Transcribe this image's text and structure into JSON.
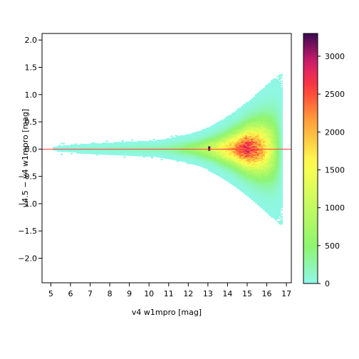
{
  "chart_data": {
    "type": "heatmap",
    "title": "",
    "xlabel": "v4 w1mpro [mag]",
    "ylabel": "v4.5 − v4 w1mpro [mag]",
    "xlim": [
      4.55,
      17.25
    ],
    "ylim": [
      -2.45,
      2.12
    ],
    "x_ticks": [
      5,
      6,
      7,
      8,
      9,
      10,
      11,
      12,
      13,
      14,
      15,
      16,
      17
    ],
    "y_ticks": [
      -2.0,
      -1.5,
      -1.0,
      -0.5,
      0.0,
      0.5,
      1.0,
      1.5,
      2.0
    ],
    "y_tick_labels": [
      "−2.0",
      "−1.5",
      "−1.0",
      "−0.5",
      "0.0",
      "0.5",
      "1.0",
      "1.5",
      "2.0"
    ],
    "reference_line": {
      "y": 0.0,
      "color": "#ff3b3b"
    },
    "colorbar": {
      "min": 0,
      "max": 3300,
      "ticks": [
        0,
        500,
        1000,
        1500,
        2000,
        2500,
        3000
      ],
      "colors": [
        "#8ff7e8",
        "#8ef56f",
        "#ffff50",
        "#ff9a3a",
        "#ff3a3a",
        "#d81e6e",
        "#3a0a52"
      ]
    },
    "density_model": {
      "description_units": "x in mag, y in mag, counts per bin",
      "bin_size_x": 0.1,
      "bin_size_y": 0.02,
      "ridge_peak_x": 14.9,
      "ridge_peak_count": 2700,
      "hotspot": {
        "x": 13.05,
        "y": 0.0,
        "count": 3300
      },
      "scatter_extent_x": [
        4.9,
        16.7
      ],
      "envelope_ymax_at_15": 1.05,
      "envelope_ymin_at_15": -1.35
    }
  }
}
